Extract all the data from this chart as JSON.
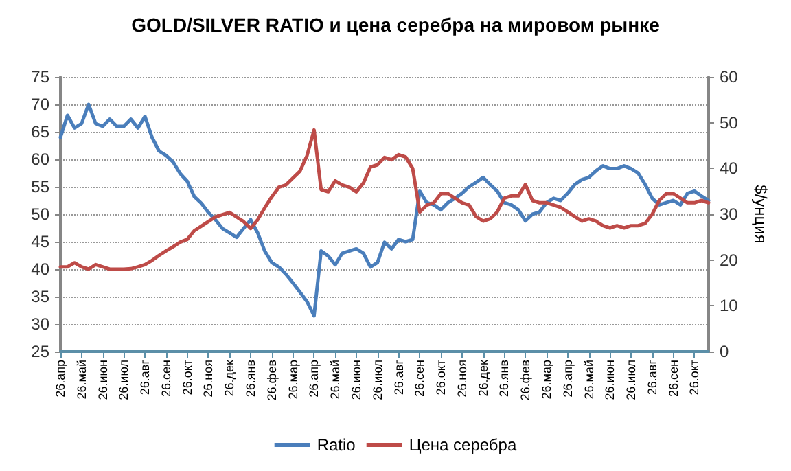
{
  "chart_data": {
    "type": "line",
    "title": "GOLD/SILVER RATIO и цена серебра на мировом рынке",
    "y2label": "$/унция",
    "categories": [
      "26.апр",
      null,
      null,
      "26.май",
      null,
      null,
      "26.июн",
      null,
      null,
      "26.июл",
      null,
      null,
      "26.авг",
      null,
      null,
      "26.сен",
      null,
      null,
      "26.окт",
      null,
      null,
      "26.ноя",
      null,
      null,
      "26.дек",
      null,
      null,
      "26.янв",
      null,
      null,
      "26.фев",
      null,
      null,
      "26.мар",
      null,
      null,
      "26.апр",
      null,
      null,
      "26.май",
      null,
      null,
      "26.июн",
      null,
      null,
      "26.июл",
      null,
      null,
      "26.авг",
      null,
      null,
      "26.сен",
      null,
      null,
      "26.окт",
      null,
      null,
      "26.ноя",
      null,
      null,
      "26.дек",
      null,
      null,
      "26.янв",
      null,
      null,
      "26.фев",
      null,
      null,
      "26.мар",
      null,
      null,
      "26.апр",
      null,
      null,
      "26.май",
      null,
      null,
      "26.июн",
      null,
      null,
      "26.июл",
      null,
      null,
      "26.авг",
      null,
      null,
      "26.сен",
      null,
      null,
      "26.окт",
      null,
      null
    ],
    "series": [
      {
        "name": "Ratio",
        "color": "#4a7ebb",
        "values": [
          64,
          68,
          65.7,
          66.5,
          70,
          66.5,
          66,
          67.3,
          66,
          66,
          67.3,
          65.7,
          67.8,
          64,
          61.5,
          60.7,
          59.5,
          57.4,
          56,
          53.2,
          52,
          50.3,
          49,
          47.4,
          46.6,
          45.8,
          47.4,
          49,
          46.6,
          43.3,
          41.2,
          40.4,
          39.1,
          37.5,
          35.8,
          34.1,
          31.5,
          43.3,
          42.4,
          40.8,
          42.9,
          43.3,
          43.7,
          42.9,
          40.4,
          41.2,
          44.9,
          43.7,
          45.4,
          45,
          45.4,
          54.2,
          52.1,
          51.7,
          50.8,
          52.1,
          52.9,
          53.8,
          55,
          55.8,
          56.7,
          55.4,
          54.2,
          52.1,
          51.7,
          50.8,
          48.8,
          50,
          50.4,
          52.1,
          52.9,
          52.5,
          53.8,
          55.4,
          56.3,
          56.7,
          57.9,
          58.8,
          58.3,
          58.3,
          58.8,
          58.3,
          57.5,
          55.4,
          52.9,
          51.7,
          52.1,
          52.5,
          51.7,
          53.8,
          54.2,
          53.3,
          52.5
        ]
      },
      {
        "name": "Цена серебра",
        "color": "#be4b48",
        "axis": "y2",
        "values": [
          18.5,
          18.5,
          19.4,
          18.5,
          18,
          19,
          18.5,
          18,
          18,
          18,
          18.1,
          18.5,
          19,
          19.9,
          21,
          22,
          22.9,
          23.9,
          24.5,
          26.4,
          27.4,
          28.4,
          29.4,
          29.9,
          30.4,
          29.4,
          28.4,
          26.9,
          28.8,
          31.4,
          33.8,
          35.9,
          36.4,
          37.9,
          39.4,
          42.8,
          48.4,
          35.4,
          34.9,
          37.3,
          36.4,
          35.9,
          34.9,
          36.8,
          40.3,
          40.8,
          42.4,
          41.9,
          43,
          42.5,
          40,
          30.5,
          32,
          32.5,
          34.5,
          34.5,
          33.5,
          32.5,
          32,
          29.5,
          28.5,
          29,
          30.5,
          33.5,
          34,
          34,
          36.5,
          33,
          32.5,
          32.5,
          32,
          31.5,
          30.5,
          29.5,
          28.5,
          29,
          28.5,
          27.5,
          27,
          27.5,
          27,
          27.5,
          27.5,
          28,
          30,
          33,
          34.5,
          34.5,
          33.5,
          32.5,
          32.5,
          33,
          32.5
        ]
      }
    ],
    "ylim": [
      25,
      75
    ],
    "yticks": [
      25,
      30,
      35,
      40,
      45,
      50,
      55,
      60,
      65,
      70,
      75
    ],
    "y2lim": [
      0,
      60
    ],
    "y2ticks": [
      0,
      10,
      20,
      30,
      40,
      50,
      60
    ],
    "grid": "y",
    "legend": "bottom",
    "marker": "none",
    "line_style": "solid"
  }
}
